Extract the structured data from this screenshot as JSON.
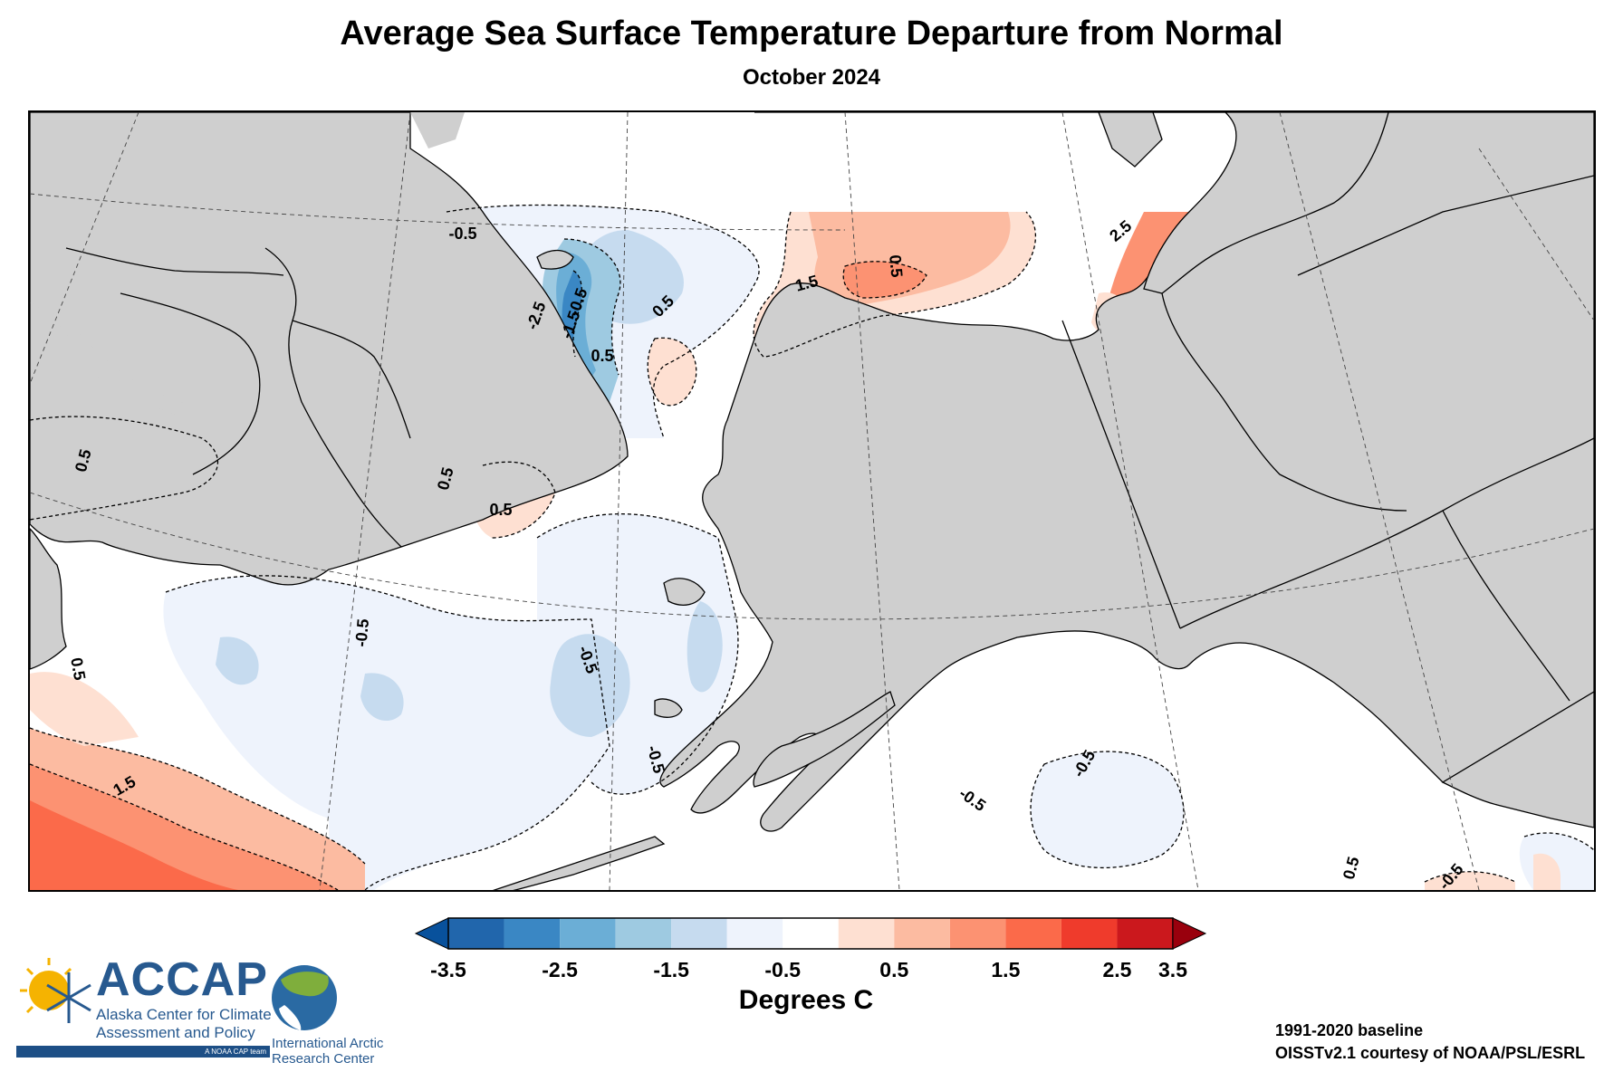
{
  "title": "Average Sea Surface Temperature Departure from Normal",
  "subtitle": "October 2024",
  "map": {
    "contour_labels": [
      {
        "text": "-0.5"
      },
      {
        "text": "-2.5"
      },
      {
        "text": "-1.5"
      },
      {
        "text": "-0.5"
      },
      {
        "text": "0.5"
      },
      {
        "text": "1.5"
      },
      {
        "text": "0.5"
      },
      {
        "text": "2.5"
      },
      {
        "text": "0.5"
      },
      {
        "text": "0.5"
      },
      {
        "text": "0.5"
      },
      {
        "text": "0.5"
      },
      {
        "text": "-0.5"
      },
      {
        "text": "-0.5"
      },
      {
        "text": "0.5"
      },
      {
        "text": "1.5"
      },
      {
        "text": "-0.5"
      },
      {
        "text": "-0.5"
      },
      {
        "text": "-0.5"
      },
      {
        "text": "0.5"
      },
      {
        "text": "-0.5"
      }
    ]
  },
  "colorbar": {
    "title": "Degrees C",
    "tick_labels": [
      "-3.5",
      "-2.5",
      "-1.5",
      "-0.5",
      "0.5",
      "1.5",
      "2.5",
      "3.5"
    ],
    "colors": [
      "#2166ac",
      "#3a87c4",
      "#6baed6",
      "#9ecae1",
      "#c6dbef",
      "#eef3fc",
      "#ffffff",
      "#fee0d2",
      "#fcbba1",
      "#fc9272",
      "#fb6a4a",
      "#ef3b2c",
      "#cb181d"
    ],
    "under_color": "#08519c",
    "over_color": "#99000d"
  },
  "logos": {
    "accap_name": "ACCAP",
    "accap_line1": "Alaska Center for Climate",
    "accap_line2": "Assessment and Policy",
    "accap_tag": "A NOAA CAP team",
    "iarc_line1": "International Arctic",
    "iarc_line2": "Research Center"
  },
  "credits": {
    "baseline": "1991-2020 baseline",
    "source": "OISSTv2.1 courtesy of NOAA/PSL/ESRL"
  }
}
